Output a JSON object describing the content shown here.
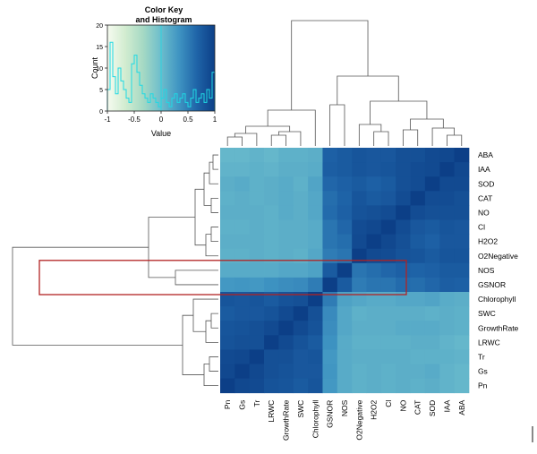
{
  "chart_data": {
    "type": "heatmap",
    "color_key": {
      "title_line1": "Color Key",
      "title_line2": "and Histogram",
      "xlabel": "Value",
      "ylabel": "Count",
      "x_ticks": [
        "-1",
        "-0.5",
        "0",
        "0.5",
        "1"
      ],
      "y_ticks": [
        "0",
        "5",
        "10",
        "15",
        "20"
      ],
      "xlim": [
        -1,
        1
      ],
      "ylim": [
        0,
        20
      ],
      "colors": [
        "#f6fbf0",
        "#d2ecd0",
        "#a5d9c4",
        "#6cbdcc",
        "#3f94c2",
        "#1f64a8",
        "#0c3f87"
      ],
      "histogram_color": "#1fd9e4"
    },
    "row_labels": [
      "ABA",
      "IAA",
      "SOD",
      "CAT",
      "NO",
      "Cl",
      "H2O2",
      "O2Negative",
      "NOS",
      "GSNOR",
      "Chlorophyll",
      "SWC",
      "GrowthRate",
      "LRWC",
      "Tr",
      "Gs",
      "Pn"
    ],
    "col_labels": [
      "Pn",
      "Gs",
      "Tr",
      "LRWC",
      "GrowthRate",
      "SWC",
      "Chlorophyll",
      "GSNOR",
      "NOS",
      "O2Negative",
      "H2O2",
      "Cl",
      "NO",
      "CAT",
      "SOD",
      "IAA",
      "ABA"
    ],
    "highlight_rows": [
      "NOS",
      "GSNOR"
    ],
    "highlight_color": "#b22222",
    "values": [
      [
        0.05,
        0.05,
        0.08,
        0.05,
        0.1,
        0.1,
        0.12,
        0.7,
        0.75,
        0.8,
        0.78,
        0.78,
        0.85,
        0.85,
        0.9,
        0.92,
        1.0
      ],
      [
        0.08,
        0.08,
        0.1,
        0.08,
        0.12,
        0.12,
        0.14,
        0.72,
        0.75,
        0.8,
        0.78,
        0.8,
        0.85,
        0.88,
        0.9,
        1.0,
        0.92
      ],
      [
        0.12,
        0.15,
        0.1,
        0.12,
        0.15,
        0.1,
        0.2,
        0.65,
        0.7,
        0.75,
        0.7,
        0.75,
        0.85,
        0.88,
        1.0,
        0.9,
        0.9
      ],
      [
        0.1,
        0.12,
        0.1,
        0.12,
        0.15,
        0.12,
        0.18,
        0.6,
        0.68,
        0.8,
        0.75,
        0.78,
        0.88,
        1.0,
        0.88,
        0.88,
        0.85
      ],
      [
        0.12,
        0.12,
        0.12,
        0.1,
        0.15,
        0.12,
        0.18,
        0.62,
        0.7,
        0.82,
        0.85,
        0.88,
        1.0,
        0.88,
        0.85,
        0.85,
        0.85
      ],
      [
        0.1,
        0.1,
        0.12,
        0.1,
        0.12,
        0.12,
        0.15,
        0.55,
        0.65,
        0.88,
        0.92,
        1.0,
        0.88,
        0.78,
        0.75,
        0.8,
        0.78
      ],
      [
        0.12,
        0.12,
        0.12,
        0.1,
        0.12,
        0.12,
        0.15,
        0.55,
        0.6,
        0.9,
        1.0,
        0.92,
        0.85,
        0.75,
        0.7,
        0.78,
        0.78
      ],
      [
        0.1,
        0.1,
        0.12,
        0.1,
        0.12,
        0.1,
        0.18,
        0.5,
        0.55,
        1.0,
        0.9,
        0.88,
        0.82,
        0.8,
        0.75,
        0.8,
        0.8
      ],
      [
        0.15,
        0.15,
        0.15,
        0.15,
        0.18,
        0.18,
        0.22,
        0.75,
        1.0,
        0.55,
        0.6,
        0.65,
        0.7,
        0.68,
        0.7,
        0.75,
        0.75
      ],
      [
        0.3,
        0.32,
        0.3,
        0.35,
        0.38,
        0.4,
        0.5,
        1.0,
        0.75,
        0.5,
        0.55,
        0.55,
        0.62,
        0.6,
        0.65,
        0.72,
        0.7
      ],
      [
        0.8,
        0.78,
        0.8,
        0.75,
        0.82,
        0.85,
        1.0,
        0.5,
        0.22,
        0.18,
        0.15,
        0.15,
        0.18,
        0.18,
        0.2,
        0.14,
        0.12
      ],
      [
        0.75,
        0.78,
        0.78,
        0.82,
        0.9,
        1.0,
        0.85,
        0.4,
        0.18,
        0.1,
        0.12,
        0.12,
        0.12,
        0.12,
        0.1,
        0.12,
        0.1
      ],
      [
        0.8,
        0.82,
        0.85,
        0.9,
        1.0,
        0.9,
        0.82,
        0.38,
        0.18,
        0.12,
        0.12,
        0.12,
        0.15,
        0.15,
        0.15,
        0.12,
        0.1
      ],
      [
        0.82,
        0.85,
        0.85,
        1.0,
        0.9,
        0.82,
        0.75,
        0.35,
        0.15,
        0.1,
        0.1,
        0.1,
        0.1,
        0.12,
        0.12,
        0.08,
        0.05
      ],
      [
        0.9,
        0.92,
        1.0,
        0.85,
        0.85,
        0.78,
        0.8,
        0.3,
        0.15,
        0.12,
        0.12,
        0.12,
        0.12,
        0.1,
        0.1,
        0.1,
        0.08
      ],
      [
        0.92,
        1.0,
        0.92,
        0.85,
        0.82,
        0.78,
        0.78,
        0.32,
        0.15,
        0.1,
        0.12,
        0.1,
        0.12,
        0.12,
        0.15,
        0.08,
        0.05
      ],
      [
        1.0,
        0.92,
        0.9,
        0.82,
        0.8,
        0.75,
        0.8,
        0.3,
        0.15,
        0.1,
        0.12,
        0.1,
        0.12,
        0.1,
        0.12,
        0.08,
        0.05
      ]
    ],
    "histogram_counts": [
      5,
      16,
      8,
      4,
      10,
      7,
      5,
      3,
      2,
      11,
      13,
      9,
      6,
      4,
      3,
      2,
      4,
      3,
      2,
      1,
      3,
      5,
      2,
      1,
      3,
      4,
      2,
      3,
      4,
      2,
      1,
      3,
      5,
      2,
      3,
      4,
      2,
      5,
      3,
      9
    ]
  }
}
